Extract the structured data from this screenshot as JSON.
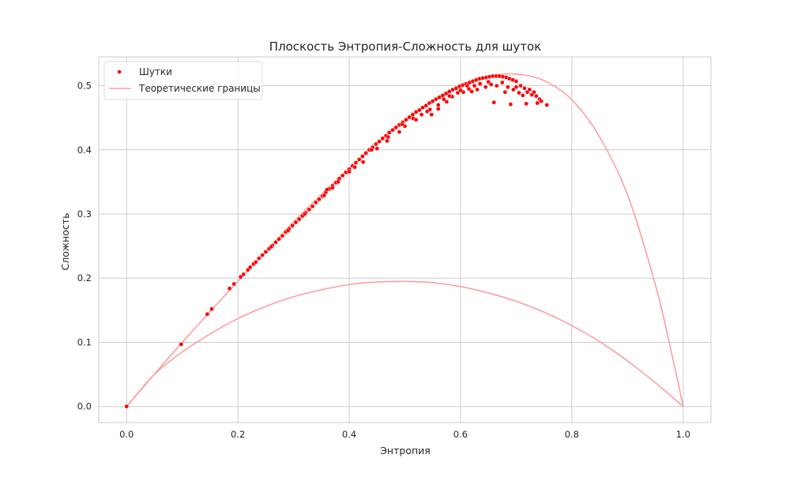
{
  "chart_data": {
    "type": "scatter",
    "title": "Плоскость Энтропия-Сложность для шуток",
    "xlabel": "Энтропия",
    "ylabel": "Сложность",
    "xlim": [
      -0.05,
      1.05
    ],
    "ylim": [
      -0.025,
      0.545
    ],
    "xticks": [
      0.0,
      0.2,
      0.4,
      0.6,
      0.8,
      1.0
    ],
    "xtick_labels": [
      "0.0",
      "0.2",
      "0.4",
      "0.6",
      "0.8",
      "1.0"
    ],
    "yticks": [
      0.0,
      0.1,
      0.2,
      0.3,
      0.4,
      0.5
    ],
    "ytick_labels": [
      "0.0",
      "0.1",
      "0.2",
      "0.3",
      "0.4",
      "0.5"
    ],
    "grid": true,
    "legend": {
      "position": "top-left",
      "entries": [
        "Шутки",
        "Теоретические границы"
      ]
    },
    "colors": {
      "points": "#ff0000",
      "boundaries": "#ff9e9e",
      "grid": "#cccccc",
      "frame": "#cccccc"
    },
    "series": [
      {
        "name": "Шутки",
        "kind": "scatter",
        "points": [
          [
            0.0,
            0.0
          ],
          [
            0.098,
            0.097
          ],
          [
            0.145,
            0.144
          ],
          [
            0.153,
            0.152
          ],
          [
            0.185,
            0.184
          ],
          [
            0.193,
            0.191
          ],
          [
            0.205,
            0.202
          ],
          [
            0.21,
            0.206
          ],
          [
            0.218,
            0.213
          ],
          [
            0.222,
            0.217
          ],
          [
            0.228,
            0.222
          ],
          [
            0.232,
            0.225
          ],
          [
            0.238,
            0.231
          ],
          [
            0.244,
            0.236
          ],
          [
            0.25,
            0.241
          ],
          [
            0.256,
            0.246
          ],
          [
            0.262,
            0.251
          ],
          [
            0.268,
            0.256
          ],
          [
            0.274,
            0.261
          ],
          [
            0.28,
            0.266
          ],
          [
            0.286,
            0.272
          ],
          [
            0.292,
            0.277
          ],
          [
            0.298,
            0.282
          ],
          [
            0.304,
            0.287
          ],
          [
            0.31,
            0.292
          ],
          [
            0.316,
            0.297
          ],
          [
            0.322,
            0.302
          ],
          [
            0.328,
            0.307
          ],
          [
            0.334,
            0.312
          ],
          [
            0.34,
            0.318
          ],
          [
            0.346,
            0.323
          ],
          [
            0.352,
            0.328
          ],
          [
            0.358,
            0.334
          ],
          [
            0.364,
            0.339
          ],
          [
            0.37,
            0.344
          ],
          [
            0.376,
            0.349
          ],
          [
            0.382,
            0.355
          ],
          [
            0.388,
            0.36
          ],
          [
            0.394,
            0.365
          ],
          [
            0.4,
            0.37
          ],
          [
            0.406,
            0.375
          ],
          [
            0.412,
            0.38
          ],
          [
            0.418,
            0.385
          ],
          [
            0.424,
            0.39
          ],
          [
            0.43,
            0.395
          ],
          [
            0.436,
            0.4
          ],
          [
            0.442,
            0.404
          ],
          [
            0.448,
            0.409
          ],
          [
            0.454,
            0.413
          ],
          [
            0.46,
            0.418
          ],
          [
            0.466,
            0.422
          ],
          [
            0.472,
            0.427
          ],
          [
            0.478,
            0.431
          ],
          [
            0.484,
            0.435
          ],
          [
            0.49,
            0.439
          ],
          [
            0.496,
            0.443
          ],
          [
            0.502,
            0.447
          ],
          [
            0.508,
            0.451
          ],
          [
            0.514,
            0.455
          ],
          [
            0.52,
            0.459
          ],
          [
            0.526,
            0.462
          ],
          [
            0.532,
            0.466
          ],
          [
            0.538,
            0.469
          ],
          [
            0.544,
            0.473
          ],
          [
            0.55,
            0.476
          ],
          [
            0.556,
            0.479
          ],
          [
            0.562,
            0.482
          ],
          [
            0.568,
            0.485
          ],
          [
            0.574,
            0.488
          ],
          [
            0.58,
            0.491
          ],
          [
            0.586,
            0.494
          ],
          [
            0.592,
            0.496
          ],
          [
            0.598,
            0.499
          ],
          [
            0.604,
            0.501
          ],
          [
            0.61,
            0.503
          ],
          [
            0.616,
            0.505
          ],
          [
            0.622,
            0.507
          ],
          [
            0.628,
            0.509
          ],
          [
            0.634,
            0.511
          ],
          [
            0.64,
            0.512
          ],
          [
            0.646,
            0.513
          ],
          [
            0.652,
            0.514
          ],
          [
            0.658,
            0.515
          ],
          [
            0.664,
            0.515
          ],
          [
            0.67,
            0.515
          ],
          [
            0.676,
            0.514
          ],
          [
            0.682,
            0.513
          ],
          [
            0.688,
            0.511
          ],
          [
            0.694,
            0.509
          ],
          [
            0.7,
            0.507
          ],
          [
            0.355,
            0.329
          ],
          [
            0.37,
            0.341
          ],
          [
            0.38,
            0.35
          ],
          [
            0.41,
            0.373
          ],
          [
            0.425,
            0.381
          ],
          [
            0.45,
            0.402
          ],
          [
            0.468,
            0.414
          ],
          [
            0.49,
            0.428
          ],
          [
            0.5,
            0.437
          ],
          [
            0.515,
            0.449
          ],
          [
            0.53,
            0.455
          ],
          [
            0.545,
            0.463
          ],
          [
            0.548,
            0.455
          ],
          [
            0.56,
            0.47
          ],
          [
            0.575,
            0.475
          ],
          [
            0.585,
            0.483
          ],
          [
            0.595,
            0.489
          ],
          [
            0.605,
            0.49
          ],
          [
            0.615,
            0.495
          ],
          [
            0.62,
            0.491
          ],
          [
            0.625,
            0.5
          ],
          [
            0.63,
            0.494
          ],
          [
            0.635,
            0.503
          ],
          [
            0.645,
            0.498
          ],
          [
            0.65,
            0.506
          ],
          [
            0.655,
            0.502
          ],
          [
            0.66,
            0.474
          ],
          [
            0.665,
            0.5
          ],
          [
            0.675,
            0.505
          ],
          [
            0.68,
            0.49
          ],
          [
            0.685,
            0.498
          ],
          [
            0.69,
            0.471
          ],
          [
            0.695,
            0.494
          ],
          [
            0.7,
            0.498
          ],
          [
            0.705,
            0.489
          ],
          [
            0.708,
            0.5
          ],
          [
            0.712,
            0.485
          ],
          [
            0.715,
            0.496
          ],
          [
            0.718,
            0.472
          ],
          [
            0.72,
            0.49
          ],
          [
            0.724,
            0.494
          ],
          [
            0.728,
            0.486
          ],
          [
            0.732,
            0.49
          ],
          [
            0.736,
            0.484
          ],
          [
            0.738,
            0.473
          ],
          [
            0.742,
            0.479
          ],
          [
            0.745,
            0.476
          ],
          [
            0.755,
            0.47
          ],
          [
            0.612,
            0.5
          ],
          [
            0.6,
            0.493
          ],
          [
            0.58,
            0.484
          ],
          [
            0.57,
            0.479
          ],
          [
            0.56,
            0.464
          ],
          [
            0.54,
            0.46
          ],
          [
            0.52,
            0.447
          ],
          [
            0.495,
            0.44
          ],
          [
            0.47,
            0.42
          ],
          [
            0.44,
            0.4
          ],
          [
            0.4,
            0.366
          ],
          [
            0.36,
            0.338
          ],
          [
            0.32,
            0.3
          ],
          [
            0.29,
            0.274
          ],
          [
            0.26,
            0.249
          ]
        ]
      },
      {
        "name": "Теоретические границы",
        "kind": "line",
        "upper": [
          [
            0.0,
            0.0
          ],
          [
            0.1,
            0.1
          ],
          [
            0.2,
            0.195
          ],
          [
            0.3,
            0.288
          ],
          [
            0.4,
            0.372
          ],
          [
            0.45,
            0.411
          ],
          [
            0.5,
            0.446
          ],
          [
            0.55,
            0.476
          ],
          [
            0.6,
            0.5
          ],
          [
            0.65,
            0.515
          ],
          [
            0.7,
            0.518
          ],
          [
            0.75,
            0.508
          ],
          [
            0.8,
            0.478
          ],
          [
            0.85,
            0.42
          ],
          [
            0.9,
            0.33
          ],
          [
            0.95,
            0.19
          ],
          [
            0.98,
            0.08
          ],
          [
            1.0,
            0.0
          ]
        ],
        "lower": [
          [
            0.0,
            0.0
          ],
          [
            0.05,
            0.05
          ],
          [
            0.1,
            0.085
          ],
          [
            0.15,
            0.113
          ],
          [
            0.2,
            0.137
          ],
          [
            0.25,
            0.156
          ],
          [
            0.3,
            0.171
          ],
          [
            0.35,
            0.182
          ],
          [
            0.4,
            0.19
          ],
          [
            0.45,
            0.194
          ],
          [
            0.5,
            0.195
          ],
          [
            0.55,
            0.193
          ],
          [
            0.6,
            0.187
          ],
          [
            0.65,
            0.177
          ],
          [
            0.7,
            0.164
          ],
          [
            0.75,
            0.147
          ],
          [
            0.8,
            0.126
          ],
          [
            0.85,
            0.101
          ],
          [
            0.9,
            0.071
          ],
          [
            0.95,
            0.037
          ],
          [
            1.0,
            0.0
          ]
        ]
      }
    ]
  }
}
